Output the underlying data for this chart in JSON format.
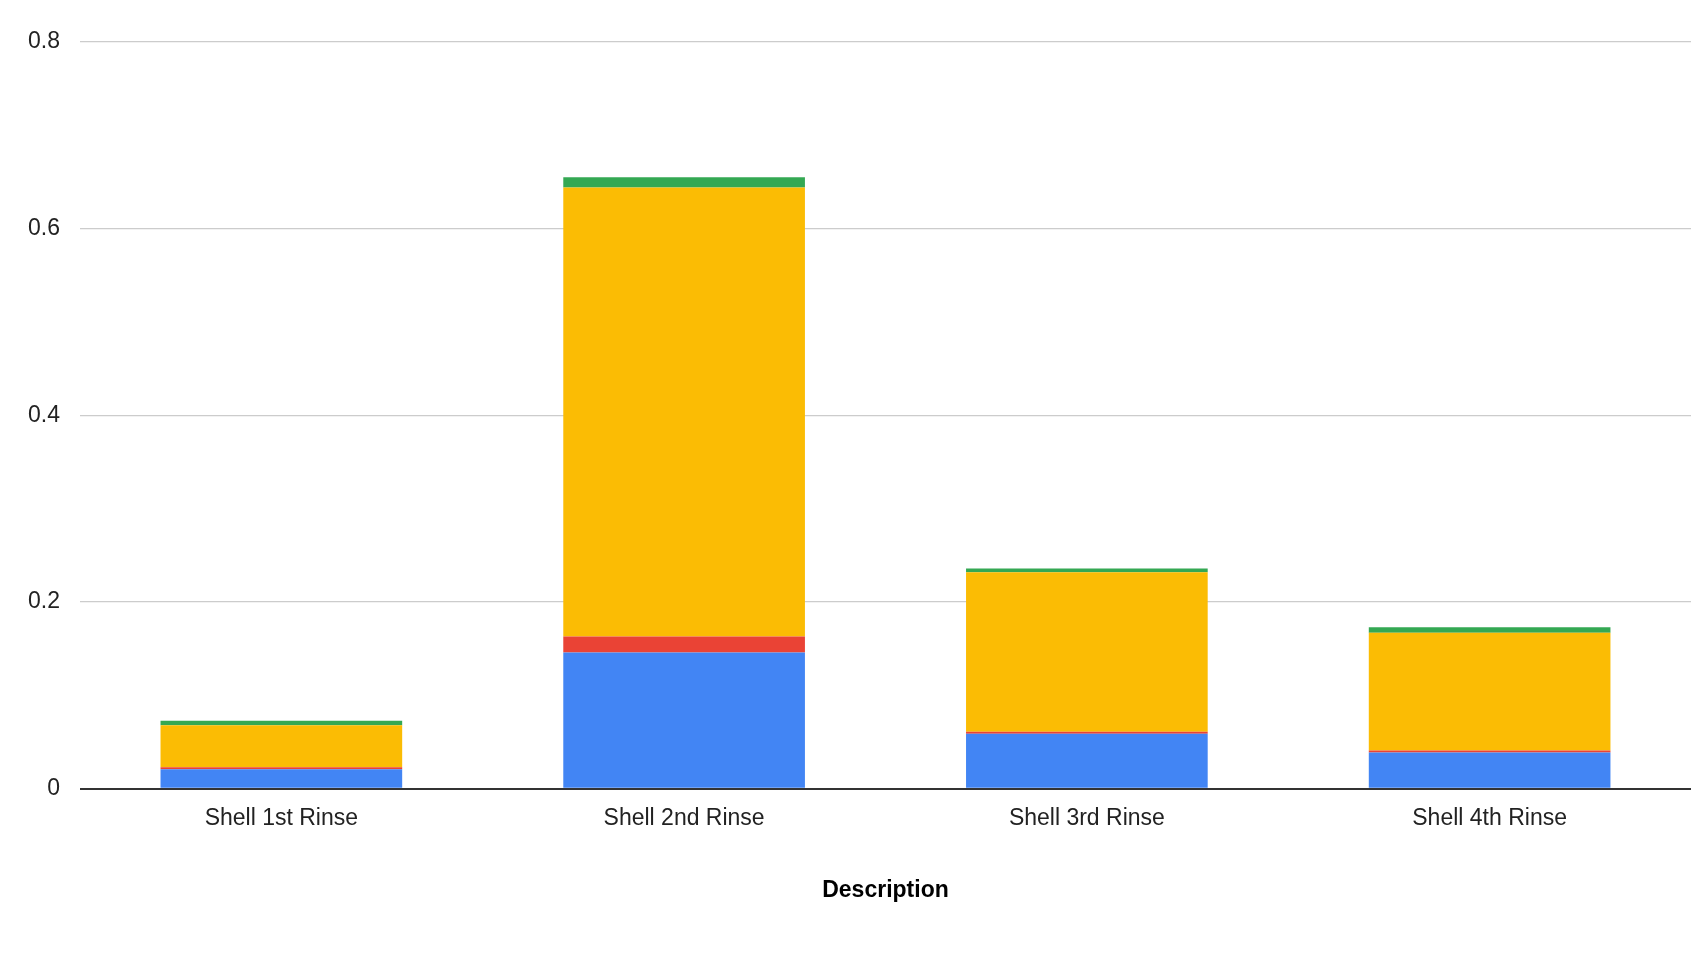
{
  "chart_data": {
    "type": "bar",
    "xlabel": "Description",
    "categories": [
      "Shell 1st Rinse",
      "Shell 2nd Rinse",
      "Shell 3rd Rinse",
      "Shell 4th Rinse"
    ],
    "stacked": true,
    "series": [
      {
        "color": "#4285f4",
        "values": [
          0.021,
          0.146,
          0.059,
          0.039
        ]
      },
      {
        "color": "#ea4335",
        "values": [
          0.002,
          0.017,
          0.002,
          0.002
        ]
      },
      {
        "color": "#fbbc04",
        "values": [
          0.045,
          0.481,
          0.171,
          0.126
        ]
      },
      {
        "color": "#34a853",
        "values": [
          0.005,
          0.011,
          0.004,
          0.006
        ]
      }
    ],
    "ylim": [
      0,
      0.8
    ],
    "yticks": [
      0,
      0.2,
      0.4,
      0.6,
      0.8
    ],
    "grid": "y",
    "legend": false
  }
}
